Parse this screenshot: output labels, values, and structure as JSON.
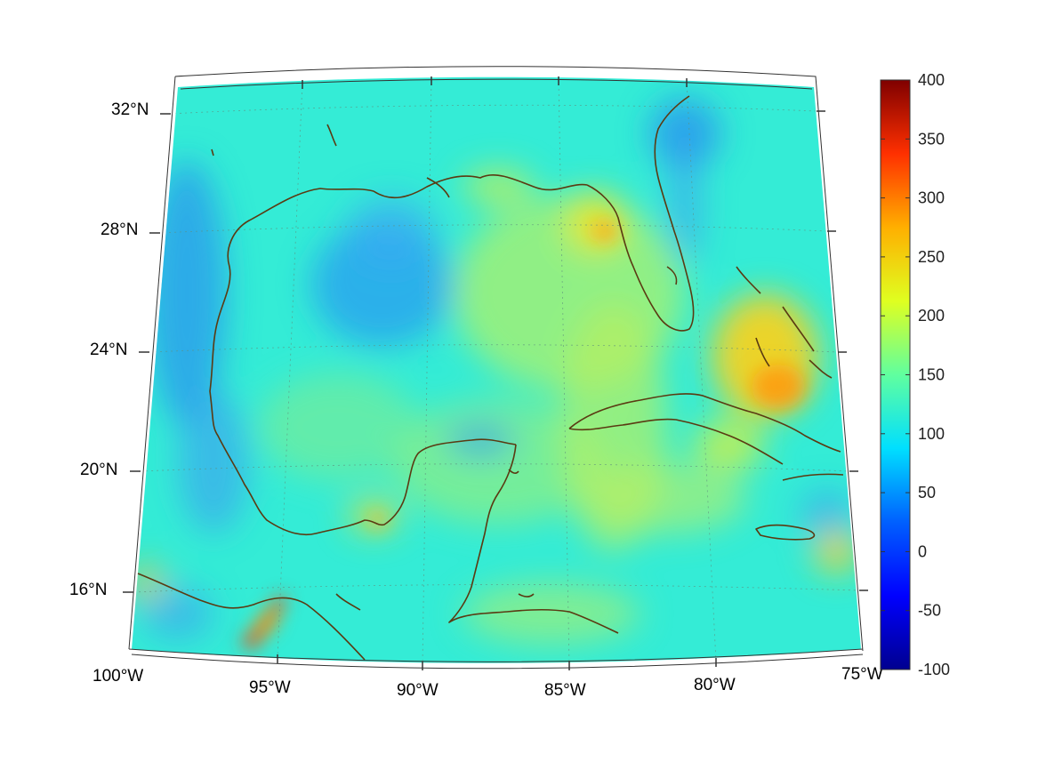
{
  "map": {
    "projection": "conic",
    "lon_range": [
      -100,
      -75
    ],
    "lat_range": [
      14,
      33
    ],
    "lon_labels": [
      "100°W",
      "95°W",
      "90°W",
      "85°W",
      "80°W",
      "75°W"
    ],
    "lat_labels": [
      "32°N",
      "28°N",
      "24°N",
      "20°N",
      "16°N"
    ],
    "graticule": "dotted",
    "coastline_color": "#5a3a12",
    "colormap": "jet"
  },
  "colorbar": {
    "min": -100,
    "max": 400,
    "ticks": [
      "400",
      "350",
      "300",
      "250",
      "200",
      "150",
      "100",
      "50",
      "0",
      "-50",
      "-100"
    ]
  }
}
